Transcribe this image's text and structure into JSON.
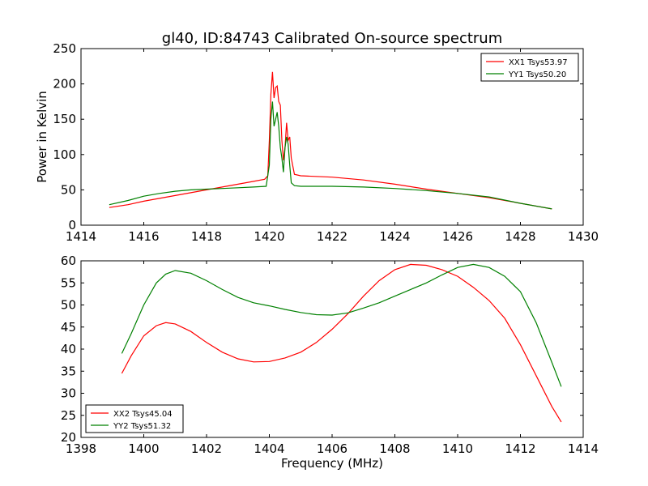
{
  "chart_data": [
    {
      "type": "line",
      "title": "gl40, ID:84743 Calibrated On-source spectrum",
      "xlabel": "",
      "ylabel": "Power in Kelvin",
      "xlim": [
        1414,
        1430
      ],
      "ylim": [
        0,
        250
      ],
      "xticks": [
        "1414",
        "1416",
        "1418",
        "1420",
        "1422",
        "1424",
        "1426",
        "1428",
        "1430"
      ],
      "yticks": [
        "0",
        "50",
        "100",
        "150",
        "200",
        "250"
      ],
      "grid": false,
      "legend_position": "top-right",
      "series": [
        {
          "name": "XX1 Tsys53.97",
          "color": "#ff0000",
          "points": [
            [
              1414.9,
              25
            ],
            [
              1415.5,
              29
            ],
            [
              1416,
              34
            ],
            [
              1416.5,
              38
            ],
            [
              1417,
              42
            ],
            [
              1417.5,
              46
            ],
            [
              1418,
              50
            ],
            [
              1418.5,
              54
            ],
            [
              1419,
              58
            ],
            [
              1419.5,
              62
            ],
            [
              1419.85,
              65
            ],
            [
              1419.95,
              70
            ],
            [
              1420.0,
              120
            ],
            [
              1420.05,
              185
            ],
            [
              1420.1,
              217
            ],
            [
              1420.15,
              180
            ],
            [
              1420.2,
              195
            ],
            [
              1420.25,
              197
            ],
            [
              1420.3,
              175
            ],
            [
              1420.35,
              170
            ],
            [
              1420.4,
              120
            ],
            [
              1420.45,
              92
            ],
            [
              1420.5,
              110
            ],
            [
              1420.55,
              145
            ],
            [
              1420.6,
              120
            ],
            [
              1420.65,
              125
            ],
            [
              1420.7,
              95
            ],
            [
              1420.8,
              72
            ],
            [
              1421,
              70
            ],
            [
              1422,
              68
            ],
            [
              1423,
              64
            ],
            [
              1424,
              58
            ],
            [
              1425,
              51
            ],
            [
              1426,
              45
            ],
            [
              1427,
              39
            ],
            [
              1428,
              31
            ],
            [
              1429,
              23
            ]
          ]
        },
        {
          "name": "YY1 Tsys50.20",
          "color": "#008000",
          "points": [
            [
              1414.9,
              29
            ],
            [
              1415.5,
              35
            ],
            [
              1416,
              41
            ],
            [
              1416.5,
              45
            ],
            [
              1417,
              48
            ],
            [
              1417.5,
              50
            ],
            [
              1418,
              51
            ],
            [
              1418.5,
              52
            ],
            [
              1419,
              53
            ],
            [
              1419.5,
              54
            ],
            [
              1419.9,
              55
            ],
            [
              1420.0,
              85
            ],
            [
              1420.05,
              150
            ],
            [
              1420.1,
              175
            ],
            [
              1420.15,
              140
            ],
            [
              1420.2,
              150
            ],
            [
              1420.25,
              160
            ],
            [
              1420.3,
              140
            ],
            [
              1420.35,
              110
            ],
            [
              1420.4,
              95
            ],
            [
              1420.45,
              75
            ],
            [
              1420.5,
              110
            ],
            [
              1420.55,
              125
            ],
            [
              1420.6,
              115
            ],
            [
              1420.65,
              85
            ],
            [
              1420.7,
              60
            ],
            [
              1420.8,
              56
            ],
            [
              1421,
              55
            ],
            [
              1422,
              55
            ],
            [
              1423,
              54
            ],
            [
              1424,
              52
            ],
            [
              1425,
              49
            ],
            [
              1426,
              45
            ],
            [
              1427,
              40
            ],
            [
              1428,
              31
            ],
            [
              1429,
              23
            ]
          ]
        }
      ]
    },
    {
      "type": "line",
      "title": "",
      "xlabel": "Frequency (MHz)",
      "ylabel": "",
      "xlim": [
        1398,
        1414
      ],
      "ylim": [
        20,
        60
      ],
      "xticks": [
        "1398",
        "1400",
        "1402",
        "1404",
        "1406",
        "1408",
        "1410",
        "1412",
        "1414"
      ],
      "yticks": [
        "20",
        "25",
        "30",
        "35",
        "40",
        "45",
        "50",
        "55",
        "60"
      ],
      "grid": false,
      "legend_position": "bottom-left",
      "series": [
        {
          "name": "XX2 Tsys45.04",
          "color": "#ff0000",
          "points": [
            [
              1399.3,
              34.5
            ],
            [
              1399.6,
              38.5
            ],
            [
              1400,
              43
            ],
            [
              1400.4,
              45.3
            ],
            [
              1400.7,
              46
            ],
            [
              1401,
              45.7
            ],
            [
              1401.5,
              44
            ],
            [
              1402,
              41.5
            ],
            [
              1402.5,
              39.3
            ],
            [
              1403,
              37.8
            ],
            [
              1403.5,
              37.1
            ],
            [
              1404,
              37.2
            ],
            [
              1404.5,
              38
            ],
            [
              1405,
              39.3
            ],
            [
              1405.5,
              41.5
            ],
            [
              1406,
              44.5
            ],
            [
              1406.5,
              48
            ],
            [
              1407,
              52
            ],
            [
              1407.5,
              55.5
            ],
            [
              1408,
              58
            ],
            [
              1408.5,
              59.2
            ],
            [
              1409,
              59
            ],
            [
              1409.5,
              58
            ],
            [
              1410,
              56.5
            ],
            [
              1410.5,
              54
            ],
            [
              1411,
              51
            ],
            [
              1411.5,
              47
            ],
            [
              1412,
              41
            ],
            [
              1412.5,
              34
            ],
            [
              1413,
              27
            ],
            [
              1413.3,
              23.5
            ]
          ]
        },
        {
          "name": "YY2 Tsys51.32",
          "color": "#008000",
          "points": [
            [
              1399.3,
              39
            ],
            [
              1399.6,
              43.5
            ],
            [
              1400,
              50
            ],
            [
              1400.4,
              55
            ],
            [
              1400.7,
              57
            ],
            [
              1401,
              57.8
            ],
            [
              1401.5,
              57.2
            ],
            [
              1402,
              55.5
            ],
            [
              1402.5,
              53.5
            ],
            [
              1403,
              51.7
            ],
            [
              1403.5,
              50.5
            ],
            [
              1404,
              49.8
            ],
            [
              1404.5,
              49
            ],
            [
              1405,
              48.3
            ],
            [
              1405.5,
              47.8
            ],
            [
              1406,
              47.7
            ],
            [
              1406.5,
              48.2
            ],
            [
              1407,
              49.3
            ],
            [
              1407.5,
              50.5
            ],
            [
              1408,
              52
            ],
            [
              1408.5,
              53.5
            ],
            [
              1409,
              55
            ],
            [
              1409.5,
              56.8
            ],
            [
              1410,
              58.5
            ],
            [
              1410.5,
              59.2
            ],
            [
              1411,
              58.5
            ],
            [
              1411.5,
              56.5
            ],
            [
              1412,
              53
            ],
            [
              1412.5,
              46
            ],
            [
              1413,
              37
            ],
            [
              1413.3,
              31.5
            ]
          ]
        }
      ]
    }
  ]
}
